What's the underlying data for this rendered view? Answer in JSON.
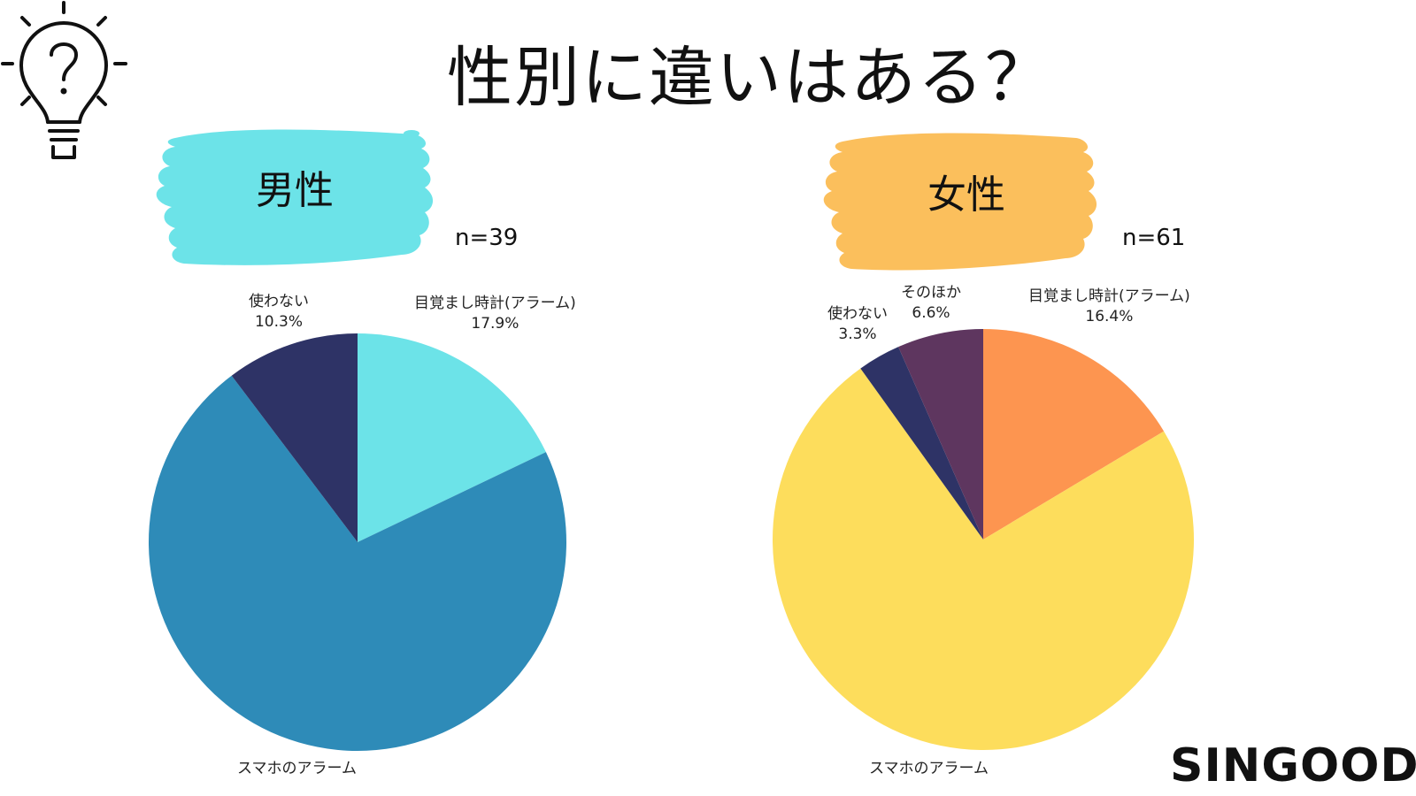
{
  "title": "性別に違いはある？",
  "brand": "SINGOOD",
  "icons": {
    "header": "lightbulb-question-icon"
  },
  "colors": {
    "male_badge": "#6ce3e8",
    "female_badge": "#fbbf5c"
  },
  "male": {
    "label": "男性",
    "n": "n=39"
  },
  "female": {
    "label": "女性",
    "n": "n=61"
  },
  "chart_data": [
    {
      "type": "pie",
      "title": "男性",
      "n": "n=39",
      "slices": [
        {
          "label": "目覚まし時計(アラーム)",
          "value": 17.9,
          "value_text": "17.9%",
          "color": "#6ce3e8"
        },
        {
          "label": "スマホのアラーム",
          "value": 71.8,
          "value_text": "",
          "color": "#2e8bb8"
        },
        {
          "label": "使わない",
          "value": 10.3,
          "value_text": "10.3%",
          "color": "#2e3366"
        }
      ]
    },
    {
      "type": "pie",
      "title": "女性",
      "n": "n=61",
      "slices": [
        {
          "label": "目覚まし時計(アラーム)",
          "value": 16.4,
          "value_text": "16.4%",
          "color": "#fd9550"
        },
        {
          "label": "スマホのアラーム",
          "value": 73.7,
          "value_text": "",
          "color": "#fddd5c"
        },
        {
          "label": "使わない",
          "value": 3.3,
          "value_text": "3.3%",
          "color": "#2e3366"
        },
        {
          "label": "そのほか",
          "value": 6.6,
          "value_text": "6.6%",
          "color": "#5e365f"
        }
      ]
    }
  ]
}
